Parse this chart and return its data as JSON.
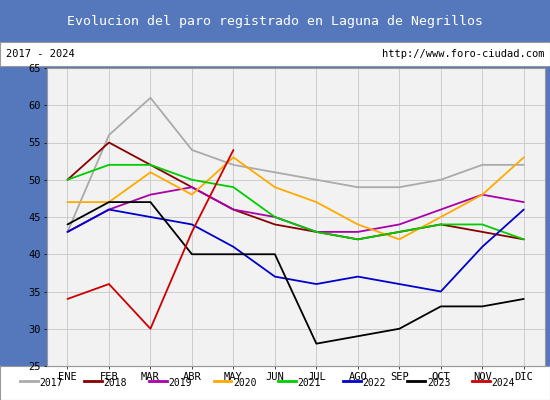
{
  "title": "Evolucion del paro registrado en Laguna de Negrillos",
  "subtitle_left": "2017 - 2024",
  "subtitle_right": "http://www.foro-ciudad.com",
  "months": [
    "ENE",
    "FEB",
    "MAR",
    "ABR",
    "MAY",
    "JUN",
    "JUL",
    "AGO",
    "SEP",
    "OCT",
    "NOV",
    "DIC"
  ],
  "ylim": [
    25,
    65
  ],
  "yticks": [
    25,
    30,
    35,
    40,
    45,
    50,
    55,
    60,
    65
  ],
  "series": {
    "2017": {
      "color": "#aaaaaa",
      "values": [
        43,
        56,
        61,
        54,
        52,
        51,
        50,
        49,
        49,
        50,
        52,
        52
      ]
    },
    "2018": {
      "color": "#880000",
      "values": [
        50,
        55,
        52,
        49,
        46,
        44,
        43,
        42,
        43,
        44,
        43,
        42
      ]
    },
    "2019": {
      "color": "#aa00aa",
      "values": [
        43,
        46,
        48,
        49,
        46,
        45,
        43,
        43,
        44,
        46,
        48,
        47
      ]
    },
    "2020": {
      "color": "#ffaa00",
      "values": [
        47,
        47,
        51,
        48,
        53,
        49,
        47,
        44,
        42,
        45,
        48,
        53
      ]
    },
    "2021": {
      "color": "#00cc00",
      "values": [
        50,
        52,
        52,
        50,
        49,
        45,
        43,
        42,
        43,
        44,
        44,
        42
      ]
    },
    "2022": {
      "color": "#0000cc",
      "values": [
        43,
        46,
        45,
        44,
        41,
        37,
        36,
        37,
        36,
        35,
        41,
        46
      ]
    },
    "2023": {
      "color": "#000000",
      "values": [
        44,
        47,
        47,
        40,
        40,
        40,
        28,
        29,
        30,
        33,
        33,
        34
      ]
    },
    "2024": {
      "color": "#cc0000",
      "values": [
        34,
        36,
        30,
        43,
        54,
        null,
        null,
        null,
        null,
        null,
        null,
        null
      ]
    }
  },
  "bg_color": "#e8e8e8",
  "title_bg": "#5577bb",
  "title_color": "#ffffff",
  "panel_bg": "#f2f2f2",
  "subtitle_bg": "#ffffff",
  "grid_color": "#cccccc",
  "border_color": "#999999"
}
